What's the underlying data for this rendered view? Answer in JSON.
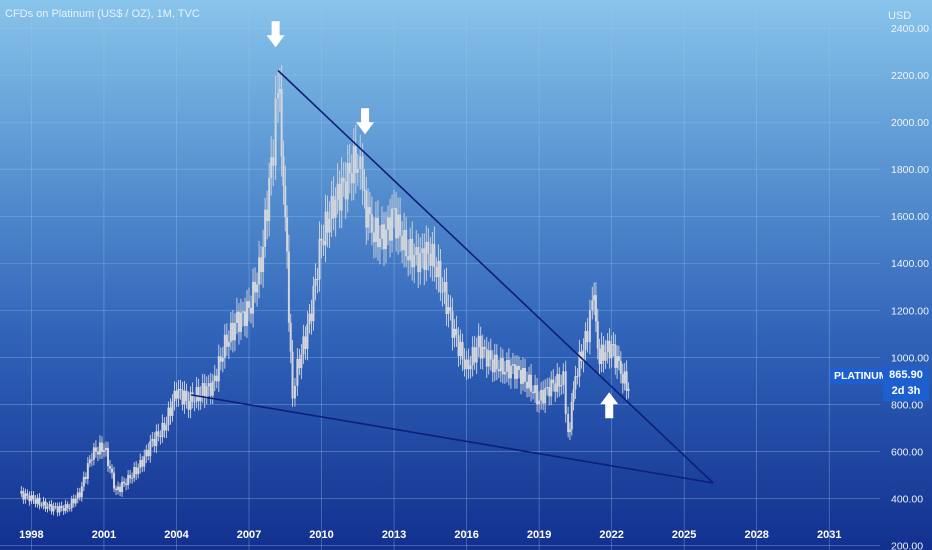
{
  "header": {
    "title": "CFDs on Platinum (US$ / OZ), 1M, TVC"
  },
  "currency": "USD",
  "price_label": {
    "symbol": "PLATINUM",
    "value": "865.90",
    "countdown": "2d 3h",
    "color": "#1e5fd0"
  },
  "colors": {
    "grid": "#9fc5ea",
    "candles": "#d3d6dc",
    "trendline": "#0d1f7a",
    "arrow": "#ffffff"
  },
  "icons": [
    "arrow-down-icon",
    "arrow-down-icon",
    "arrow-up-icon"
  ],
  "chart_data": {
    "type": "candlestick",
    "y_ticks": [
      "200.00",
      "400.00",
      "600.00",
      "800.00",
      "1000.00",
      "1200.00",
      "1400.00",
      "1600.00",
      "1800.00",
      "2000.00",
      "2200.00",
      "2400.00"
    ],
    "x_ticks": [
      "1998",
      "2001",
      "2004",
      "2007",
      "2010",
      "2013",
      "2016",
      "2019",
      "2022",
      "2025",
      "2028",
      "2031"
    ],
    "ylim": [
      180,
      2520
    ],
    "xlim": [
      1996.7,
      2033.1
    ],
    "series": [
      {
        "x": [
          1997.5,
          1998.0,
          1998.5,
          1999.0,
          1999.5,
          2000.0,
          2000.5,
          2001.0,
          2001.5,
          2002.0,
          2002.5,
          2003.0,
          2003.5,
          2004.0,
          2004.5,
          2005.0,
          2005.5,
          2006.0,
          2006.5,
          2007.0,
          2007.5,
          2008.0,
          2008.2,
          2008.5,
          2008.8,
          2009.0,
          2009.5,
          2010.0,
          2010.5,
          2011.0,
          2011.5,
          2011.7,
          2012.0,
          2012.5,
          2013.0,
          2013.5,
          2014.0,
          2014.5,
          2015.0,
          2015.5,
          2016.0,
          2016.5,
          2017.0,
          2017.5,
          2018.0,
          2018.5,
          2019.0,
          2019.5,
          2020.0,
          2020.2,
          2020.5,
          2021.0,
          2021.2,
          2021.5,
          2022.0,
          2022.3,
          2022.7
        ],
        "y": [
          420,
          400,
          370,
          355,
          360,
          420,
          590,
          620,
          430,
          480,
          540,
          640,
          700,
          860,
          810,
          850,
          880,
          1050,
          1150,
          1200,
          1400,
          1900,
          2200,
          1600,
          800,
          950,
          1150,
          1500,
          1650,
          1750,
          1850,
          1700,
          1550,
          1500,
          1600,
          1450,
          1420,
          1450,
          1300,
          1100,
          950,
          1050,
          980,
          950,
          950,
          900,
          820,
          880,
          900,
          660,
          920,
          1100,
          1300,
          1000,
          1050,
          950,
          866
        ]
      }
    ],
    "ylabel": "USD",
    "trendlines": [
      {
        "from": [
          2008.2,
          2220
        ],
        "to": [
          2026.2,
          465
        ]
      },
      {
        "from": [
          2004.6,
          840
        ],
        "to": [
          2026.2,
          465
        ]
      }
    ],
    "annotations": [
      {
        "type": "arrow-down",
        "x": 2008.1,
        "y": 2370
      },
      {
        "type": "arrow-down",
        "x": 2011.8,
        "y": 2000
      },
      {
        "type": "arrow-up",
        "x": 2021.9,
        "y": 800
      }
    ],
    "grid": true
  }
}
